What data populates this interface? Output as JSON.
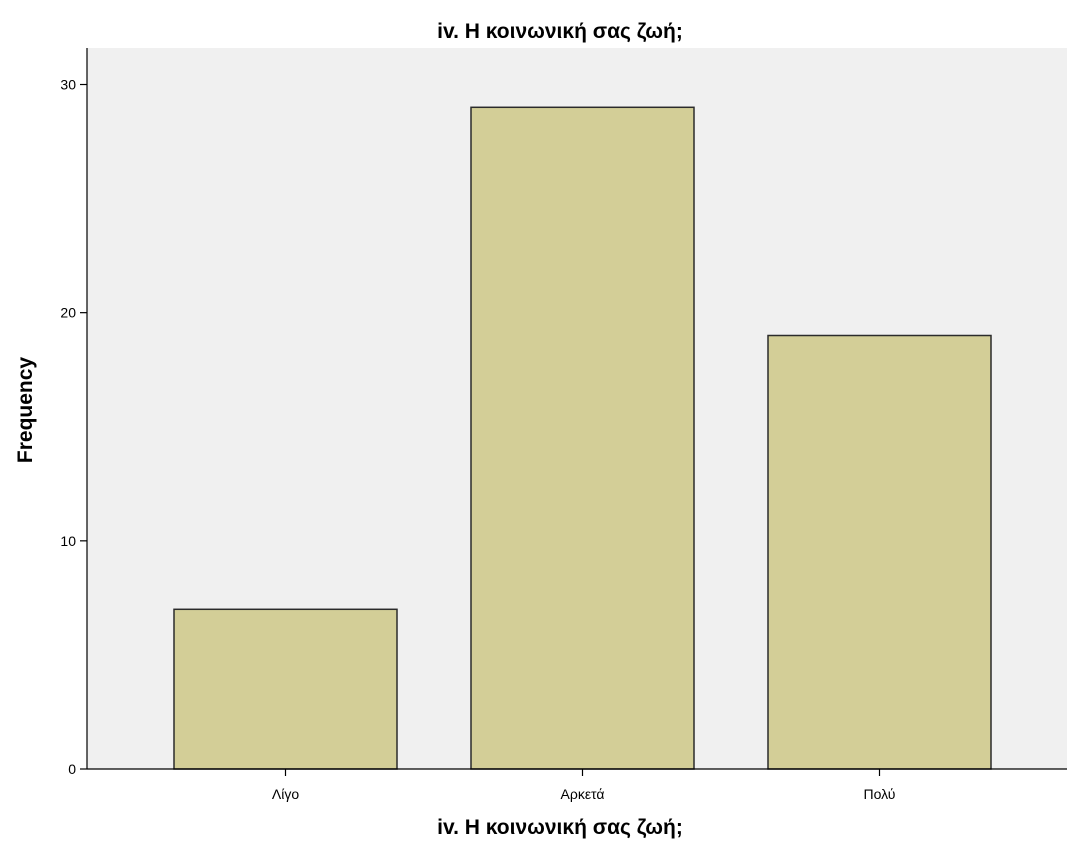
{
  "chart_data": {
    "type": "bar",
    "title": "iv. Η κοινωνική σας ζωή;",
    "xlabel": "iv. Η κοινωνική σας ζωή;",
    "ylabel": "Frequency",
    "categories": [
      "Λίγο",
      "Αρκετά",
      "Πολύ"
    ],
    "values": [
      7,
      29,
      19
    ],
    "ylim": [
      0,
      31.6
    ],
    "yticks": [
      0,
      10,
      20,
      30
    ],
    "grid": false,
    "legend": "none",
    "colors": {
      "plot_background": "#f0f0f0",
      "bar_fill": "#d3ce97",
      "bar_stroke": "#2b2b2b",
      "axis": "#000000"
    }
  }
}
